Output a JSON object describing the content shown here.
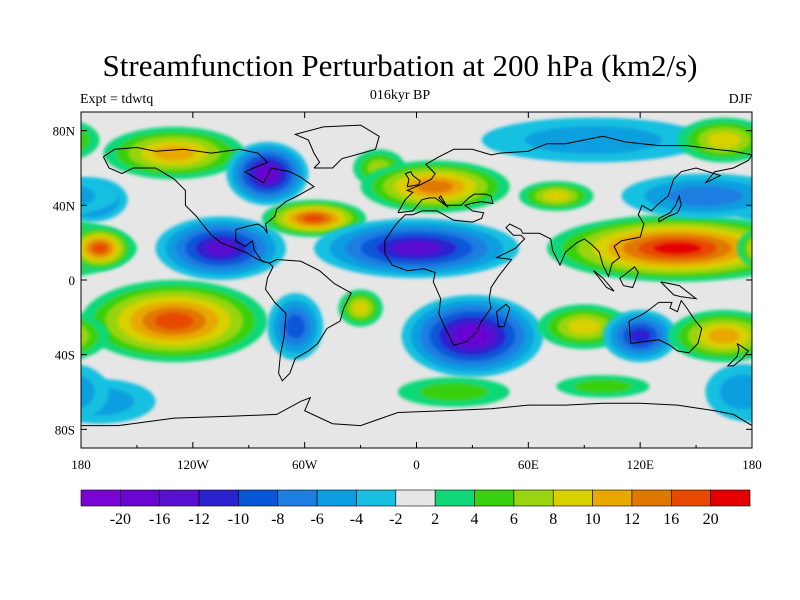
{
  "title": "Streamfunction Perturbation at 200 hPa (km2/s)",
  "subtitle_left": "Expt = tdwtq",
  "subtitle_center": "016kyr BP",
  "subtitle_right": "DJF",
  "map": {
    "projection": "cylindrical-equidistant",
    "lon_range": [
      -180,
      180
    ],
    "lat_range": [
      -90,
      90
    ],
    "background_color": "#e6e6e6",
    "x_ticks": [
      {
        "lon": -180,
        "label": "180"
      },
      {
        "lon": -120,
        "label": "120W"
      },
      {
        "lon": -60,
        "label": "60W"
      },
      {
        "lon": 0,
        "label": "0"
      },
      {
        "lon": 60,
        "label": "60E"
      },
      {
        "lon": 120,
        "label": "120E"
      },
      {
        "lon": 180,
        "label": "180"
      }
    ],
    "y_ticks": [
      {
        "lat": 80,
        "label": "80N"
      },
      {
        "lat": 40,
        "label": "40N"
      },
      {
        "lat": 0,
        "label": "0"
      },
      {
        "lat": -40,
        "label": "40S"
      },
      {
        "lat": -80,
        "label": "80S"
      }
    ],
    "features": [
      {
        "name": "anomaly-alaska-high",
        "lon": -130,
        "lat": 68,
        "rx": 38,
        "ry": 14,
        "value": 10
      },
      {
        "name": "anomaly-canada-low",
        "lon": -80,
        "lat": 57,
        "rx": 22,
        "ry": 17,
        "value": -20
      },
      {
        "name": "anomaly-north-atlantic-high",
        "lon": -20,
        "lat": 60,
        "rx": 14,
        "ry": 10,
        "value": 6
      },
      {
        "name": "anomaly-pacific-west-low",
        "lon": -175,
        "lat": 43,
        "rx": 20,
        "ry": 12,
        "value": -10
      },
      {
        "name": "anomaly-east-pacific-low",
        "lon": -105,
        "lat": 17,
        "rx": 35,
        "ry": 17,
        "value": -16
      },
      {
        "name": "anomaly-gulf-high",
        "lon": -55,
        "lat": 33,
        "rx": 28,
        "ry": 10,
        "value": 16
      },
      {
        "name": "anomaly-europe-high",
        "lon": 10,
        "lat": 50,
        "rx": 40,
        "ry": 14,
        "value": 12
      },
      {
        "name": "anomaly-atlantic-africa-low",
        "lon": 0,
        "lat": 17,
        "rx": 55,
        "ry": 16,
        "value": -16
      },
      {
        "name": "anomaly-central-asia-high",
        "lon": 75,
        "lat": 45,
        "rx": 20,
        "ry": 8,
        "value": 8
      },
      {
        "name": "anomaly-tropical-west-pacific-high",
        "lon": 140,
        "lat": 17,
        "rx": 70,
        "ry": 18,
        "value": 20
      },
      {
        "name": "anomaly-north-pacific-low",
        "lon": 155,
        "lat": 45,
        "rx": 45,
        "ry": 12,
        "value": -8
      },
      {
        "name": "anomaly-siberia-low",
        "lon": 95,
        "lat": 75,
        "rx": 60,
        "ry": 12,
        "value": -6
      },
      {
        "name": "anomaly-arctic-high",
        "lon": 165,
        "lat": 75,
        "rx": 25,
        "ry": 12,
        "value": 8
      },
      {
        "name": "anomaly-dateline-high",
        "lon": -170,
        "lat": 17,
        "rx": 18,
        "ry": 12,
        "value": 16
      },
      {
        "name": "anomaly-south-pacific-high",
        "lon": -130,
        "lat": -22,
        "rx": 50,
        "ry": 22,
        "value": 16
      },
      {
        "name": "anomaly-south-america-low",
        "lon": -65,
        "lat": -25,
        "rx": 15,
        "ry": 18,
        "value": -10
      },
      {
        "name": "anomaly-south-atlantic-high",
        "lon": -30,
        "lat": -15,
        "rx": 12,
        "ry": 10,
        "value": 8
      },
      {
        "name": "anomaly-southern-africa-low",
        "lon": 30,
        "lat": -30,
        "rx": 38,
        "ry": 22,
        "value": -20
      },
      {
        "name": "anomaly-indian-ocean-high",
        "lon": 90,
        "lat": -25,
        "rx": 25,
        "ry": 12,
        "value": 8
      },
      {
        "name": "anomaly-australia-low",
        "lon": 120,
        "lat": -30,
        "rx": 20,
        "ry": 14,
        "value": -12
      },
      {
        "name": "anomaly-tasman-high",
        "lon": 165,
        "lat": -30,
        "rx": 30,
        "ry": 14,
        "value": 10
      },
      {
        "name": "anomaly-southern-ocean-low-west",
        "lon": -170,
        "lat": -65,
        "rx": 30,
        "ry": 12,
        "value": -6
      },
      {
        "name": "anomaly-southern-ocean-high-atlantic",
        "lon": 20,
        "lat": -60,
        "rx": 30,
        "ry": 8,
        "value": 4
      },
      {
        "name": "anomaly-southern-ocean-high-indian",
        "lon": 100,
        "lat": -57,
        "rx": 25,
        "ry": 6,
        "value": 4
      },
      {
        "name": "anomaly-southern-ocean-low-east",
        "lon": 175,
        "lat": -60,
        "rx": 20,
        "ry": 15,
        "value": -6
      }
    ]
  },
  "colorbar": {
    "colors": [
      "#7a06d6",
      "#6a06d3",
      "#5810d0",
      "#2a22cf",
      "#0a56d8",
      "#1c7ee0",
      "#0c9ee0",
      "#18c0e0",
      "#e6e6e6",
      "#10d878",
      "#38d010",
      "#98d410",
      "#d8d000",
      "#e8a800",
      "#e07800",
      "#e84800",
      "#e40000"
    ],
    "labels": [
      "-20",
      "-16",
      "-12",
      "-10",
      "-8",
      "-6",
      "-4",
      "-2",
      "2",
      "4",
      "6",
      "8",
      "10",
      "12",
      "16",
      "20"
    ]
  }
}
